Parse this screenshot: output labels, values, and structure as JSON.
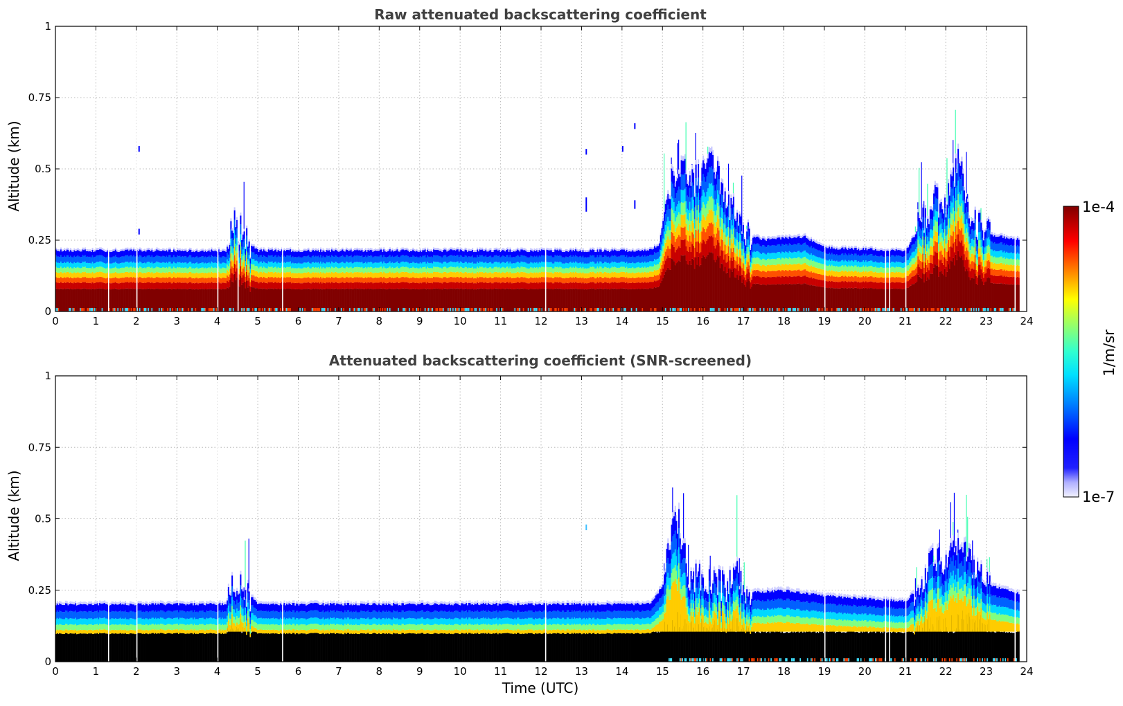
{
  "chart_data": [
    {
      "type": "heatmap",
      "title": "Raw attenuated backscattering coefficient",
      "xlabel": "",
      "ylabel": "Altitude (km)",
      "xlim": [
        0,
        24
      ],
      "ylim": [
        0,
        1
      ],
      "xticks": [
        "0",
        "1",
        "2",
        "3",
        "4",
        "5",
        "6",
        "7",
        "8",
        "9",
        "10",
        "11",
        "12",
        "13",
        "14",
        "15",
        "16",
        "17",
        "18",
        "19",
        "20",
        "21",
        "22",
        "23",
        "24"
      ],
      "yticks": [
        "0",
        "0.25",
        "0.5",
        "0.75",
        "1"
      ],
      "grid": true,
      "boundary_layer_top_km": [
        [
          0,
          0.22
        ],
        [
          4.2,
          0.22
        ],
        [
          4.4,
          0.33
        ],
        [
          4.7,
          0.26
        ],
        [
          5.0,
          0.22
        ],
        [
          14.6,
          0.22
        ],
        [
          14.9,
          0.24
        ],
        [
          15.1,
          0.42
        ],
        [
          15.4,
          0.55
        ],
        [
          15.8,
          0.47
        ],
        [
          16.2,
          0.55
        ],
        [
          16.6,
          0.4
        ],
        [
          17.0,
          0.28
        ],
        [
          17.5,
          0.26
        ],
        [
          18.5,
          0.27
        ],
        [
          19.0,
          0.23
        ],
        [
          21.0,
          0.22
        ],
        [
          21.3,
          0.3
        ],
        [
          21.7,
          0.4
        ],
        [
          22.0,
          0.38
        ],
        [
          22.3,
          0.55
        ],
        [
          22.6,
          0.34
        ],
        [
          23.0,
          0.28
        ],
        [
          23.8,
          0.26
        ]
      ],
      "gaps_hours": [
        1.3,
        2.0,
        4.0,
        4.5,
        5.6,
        12.1,
        19.0,
        20.5,
        20.6,
        21.0,
        23.7
      ]
    },
    {
      "type": "heatmap",
      "title": "Attenuated backscattering coefficient (SNR-screened)",
      "xlabel": "Time (UTC)",
      "ylabel": "Altitude (km)",
      "xlim": [
        0,
        24
      ],
      "ylim": [
        0,
        1
      ],
      "xticks": [
        "0",
        "1",
        "2",
        "3",
        "4",
        "5",
        "6",
        "7",
        "8",
        "9",
        "10",
        "11",
        "12",
        "13",
        "14",
        "15",
        "16",
        "17",
        "18",
        "19",
        "20",
        "21",
        "22",
        "23",
        "24"
      ],
      "yticks": [
        "0",
        "0.25",
        "0.5",
        "0.75",
        "1"
      ],
      "grid": true,
      "screened_below_km": 0.1,
      "boundary_layer_top_km": [
        [
          0,
          0.21
        ],
        [
          4.2,
          0.21
        ],
        [
          4.35,
          0.29
        ],
        [
          4.7,
          0.26
        ],
        [
          5.0,
          0.21
        ],
        [
          14.7,
          0.21
        ],
        [
          15.0,
          0.28
        ],
        [
          15.2,
          0.48
        ],
        [
          15.4,
          0.52
        ],
        [
          15.6,
          0.32
        ],
        [
          16.0,
          0.3
        ],
        [
          16.3,
          0.3
        ],
        [
          16.6,
          0.26
        ],
        [
          16.8,
          0.38
        ],
        [
          17.0,
          0.25
        ],
        [
          18.0,
          0.26
        ],
        [
          19.0,
          0.24
        ],
        [
          21.0,
          0.22
        ],
        [
          21.3,
          0.27
        ],
        [
          21.7,
          0.38
        ],
        [
          22.0,
          0.36
        ],
        [
          22.4,
          0.44
        ],
        [
          22.7,
          0.34
        ],
        [
          23.0,
          0.28
        ],
        [
          23.8,
          0.25
        ]
      ],
      "gaps_hours": [
        1.3,
        2.0,
        4.0,
        5.6,
        12.1,
        19.0,
        20.5,
        20.6,
        21.0,
        23.7
      ]
    }
  ],
  "colorbar": {
    "max_label": "1e-4",
    "min_label": "1e-7",
    "unit_label": "1/m/sr",
    "colormap": "jet",
    "low_color": "#e6e6ff",
    "high_color": "#800000",
    "screened_color": "#000000"
  }
}
